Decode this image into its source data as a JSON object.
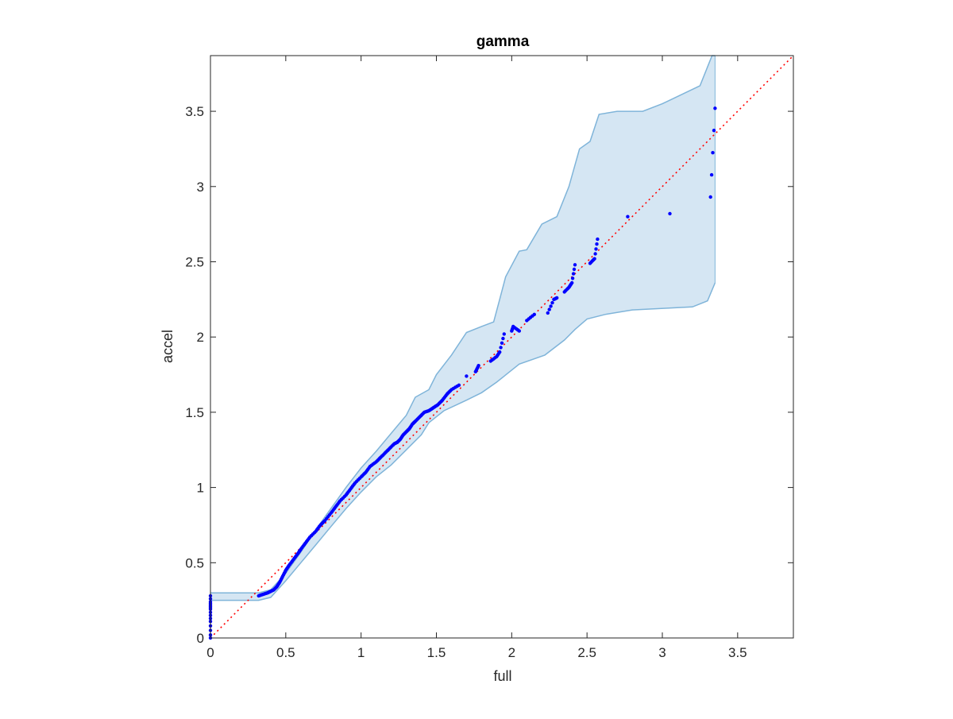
{
  "chart_data": {
    "type": "scatter",
    "title": "gamma",
    "xlabel": "full",
    "ylabel": "accel",
    "xlim": [
      0,
      3.87
    ],
    "ylim": [
      0,
      3.87
    ],
    "xticks": [
      0,
      0.5,
      1,
      1.5,
      2,
      2.5,
      3,
      3.5
    ],
    "yticks": [
      0,
      0.5,
      1,
      1.5,
      2,
      2.5,
      3,
      3.5
    ],
    "xtick_labels": [
      "0",
      "0.5",
      "1",
      "1.5",
      "2",
      "2.5",
      "3",
      "3.5"
    ],
    "ytick_labels": [
      "0",
      "0.5",
      "1",
      "1.5",
      "2",
      "2.5",
      "3",
      "3.5"
    ],
    "grid": false,
    "colors": {
      "points": "#0000ff",
      "band_fill": "#d5e6f3",
      "band_edge": "#7fb4d9",
      "reference": "#ff0000",
      "axes": "#262626"
    },
    "reference_line": {
      "style": "dotted",
      "x": [
        0,
        3.87
      ],
      "y": [
        0,
        3.87
      ]
    },
    "confidence_band": {
      "upper": [
        [
          0,
          0.3
        ],
        [
          0.32,
          0.3
        ],
        [
          0.4,
          0.32
        ],
        [
          0.5,
          0.43
        ],
        [
          0.6,
          0.57
        ],
        [
          0.7,
          0.72
        ],
        [
          0.8,
          0.86
        ],
        [
          0.9,
          1.0
        ],
        [
          1.0,
          1.13
        ],
        [
          1.1,
          1.24
        ],
        [
          1.2,
          1.36
        ],
        [
          1.3,
          1.48
        ],
        [
          1.36,
          1.6
        ],
        [
          1.45,
          1.65
        ],
        [
          1.5,
          1.75
        ],
        [
          1.6,
          1.88
        ],
        [
          1.7,
          2.03
        ],
        [
          1.8,
          2.07
        ],
        [
          1.88,
          2.1
        ],
        [
          1.92,
          2.25
        ],
        [
          1.96,
          2.4
        ],
        [
          2.05,
          2.57
        ],
        [
          2.1,
          2.58
        ],
        [
          2.2,
          2.75
        ],
        [
          2.3,
          2.8
        ],
        [
          2.38,
          3.0
        ],
        [
          2.45,
          3.25
        ],
        [
          2.52,
          3.3
        ],
        [
          2.58,
          3.48
        ],
        [
          2.7,
          3.5
        ],
        [
          2.87,
          3.5
        ],
        [
          3.0,
          3.55
        ],
        [
          3.25,
          3.67
        ],
        [
          3.33,
          3.87
        ],
        [
          3.35,
          3.87
        ]
      ],
      "lower": [
        [
          0,
          0.25
        ],
        [
          0.32,
          0.25
        ],
        [
          0.4,
          0.27
        ],
        [
          0.5,
          0.38
        ],
        [
          0.6,
          0.5
        ],
        [
          0.7,
          0.62
        ],
        [
          0.8,
          0.74
        ],
        [
          0.9,
          0.86
        ],
        [
          1.0,
          0.97
        ],
        [
          1.1,
          1.07
        ],
        [
          1.2,
          1.15
        ],
        [
          1.3,
          1.25
        ],
        [
          1.4,
          1.35
        ],
        [
          1.45,
          1.43
        ],
        [
          1.55,
          1.51
        ],
        [
          1.7,
          1.58
        ],
        [
          1.8,
          1.63
        ],
        [
          1.9,
          1.7
        ],
        [
          2.05,
          1.82
        ],
        [
          2.22,
          1.88
        ],
        [
          2.35,
          1.98
        ],
        [
          2.42,
          2.05
        ],
        [
          2.5,
          2.12
        ],
        [
          2.62,
          2.15
        ],
        [
          2.8,
          2.18
        ],
        [
          3.2,
          2.2
        ],
        [
          3.3,
          2.24
        ],
        [
          3.35,
          2.36
        ]
      ]
    },
    "series": [
      {
        "x": [
          0,
          0,
          0,
          0,
          0,
          0,
          0,
          0,
          0,
          0,
          0,
          0,
          0,
          0,
          0,
          0,
          0.32,
          0.35,
          0.38,
          0.4,
          0.42,
          0.44,
          0.46,
          0.48,
          0.5,
          0.52,
          0.55,
          0.58,
          0.6,
          0.63,
          0.66,
          0.7,
          0.73,
          0.76,
          0.8,
          0.83,
          0.86,
          0.9,
          0.93,
          0.96,
          1.0,
          1.03,
          1.06,
          1.1,
          1.13,
          1.16,
          1.19,
          1.22,
          1.24,
          1.26,
          1.28,
          1.3,
          1.32,
          1.34,
          1.36,
          1.39,
          1.42,
          1.45,
          1.48,
          1.51,
          1.54,
          1.57,
          1.6,
          1.65,
          1.7,
          1.76,
          1.78,
          1.86,
          1.9,
          1.92,
          1.95,
          2.0,
          2.01,
          2.05,
          2.1,
          2.15,
          2.24,
          2.28,
          2.3,
          2.35,
          2.38,
          2.4,
          2.42,
          2.52,
          2.55,
          2.57,
          2.77,
          3.05,
          3.32,
          3.35
        ],
        "y": [
          0.0,
          0.02,
          0.05,
          0.08,
          0.11,
          0.13,
          0.15,
          0.17,
          0.19,
          0.2,
          0.21,
          0.22,
          0.23,
          0.24,
          0.26,
          0.28,
          0.28,
          0.29,
          0.3,
          0.31,
          0.32,
          0.34,
          0.37,
          0.41,
          0.45,
          0.48,
          0.52,
          0.56,
          0.59,
          0.63,
          0.67,
          0.71,
          0.75,
          0.78,
          0.83,
          0.87,
          0.91,
          0.95,
          0.99,
          1.03,
          1.07,
          1.1,
          1.14,
          1.17,
          1.2,
          1.23,
          1.26,
          1.29,
          1.3,
          1.32,
          1.35,
          1.37,
          1.39,
          1.42,
          1.44,
          1.47,
          1.5,
          1.51,
          1.53,
          1.55,
          1.58,
          1.62,
          1.65,
          1.68,
          1.74,
          1.77,
          1.81,
          1.84,
          1.87,
          1.9,
          2.02,
          2.04,
          2.07,
          2.04,
          2.11,
          2.15,
          2.16,
          2.25,
          2.26,
          2.3,
          2.33,
          2.36,
          2.48,
          2.49,
          2.52,
          2.65,
          2.8,
          2.82,
          2.93,
          3.52
        ]
      }
    ]
  }
}
